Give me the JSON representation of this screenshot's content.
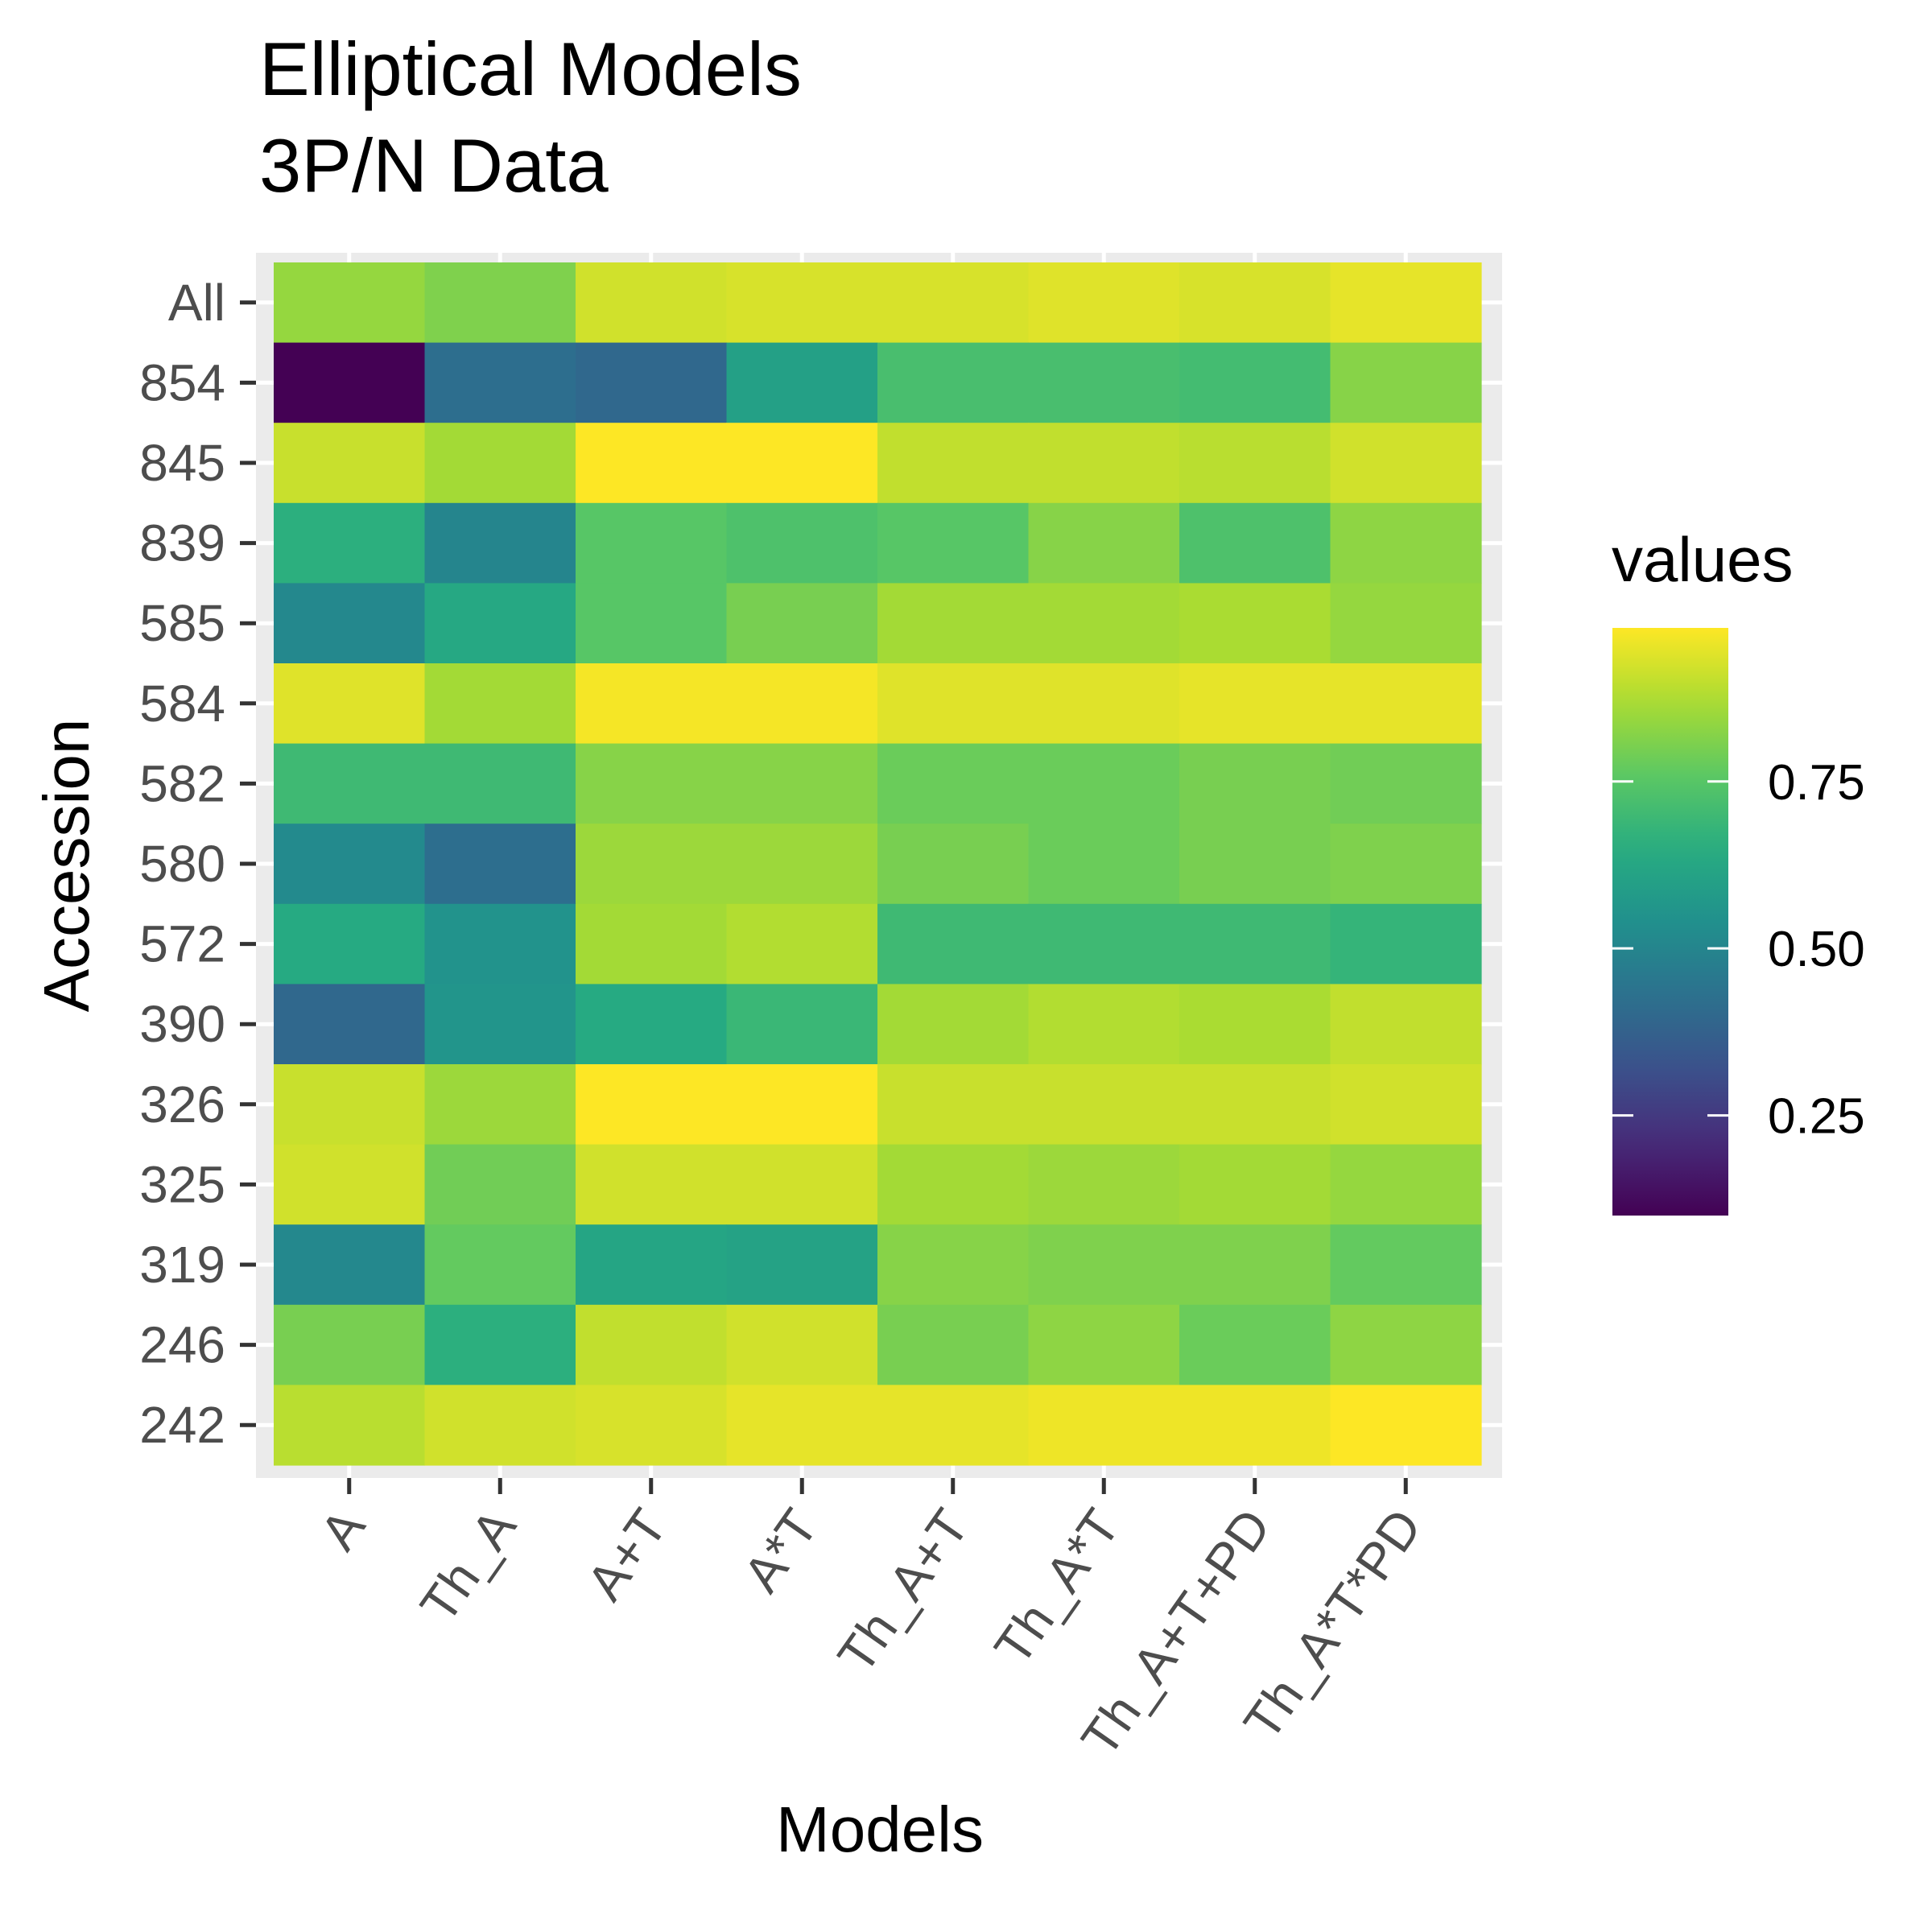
{
  "chart_data": {
    "type": "heatmap",
    "title_lines": [
      "Elliptical Models",
      "3P/N Data"
    ],
    "xlabel": "Models",
    "ylabel": "Accession",
    "x_categories": [
      "A",
      "Th_A",
      "A+T",
      "A*T",
      "Th_A+T",
      "Th_A*T",
      "Th_A+T+PD",
      "Th_A*T*PD"
    ],
    "y_categories": [
      "All",
      "854",
      "845",
      "839",
      "585",
      "584",
      "582",
      "580",
      "572",
      "390",
      "326",
      "325",
      "319",
      "246",
      "242"
    ],
    "values": [
      [
        0.84,
        0.81,
        0.92,
        0.93,
        0.93,
        0.94,
        0.93,
        0.95
      ],
      [
        0.1,
        0.42,
        0.4,
        0.6,
        0.72,
        0.72,
        0.71,
        0.82
      ],
      [
        0.91,
        0.86,
        0.98,
        0.98,
        0.9,
        0.9,
        0.89,
        0.92
      ],
      [
        0.66,
        0.5,
        0.75,
        0.73,
        0.75,
        0.82,
        0.73,
        0.83
      ],
      [
        0.51,
        0.63,
        0.75,
        0.8,
        0.86,
        0.86,
        0.87,
        0.84
      ],
      [
        0.94,
        0.86,
        0.97,
        0.97,
        0.94,
        0.94,
        0.95,
        0.95
      ],
      [
        0.7,
        0.7,
        0.82,
        0.82,
        0.78,
        0.78,
        0.8,
        0.79
      ],
      [
        0.52,
        0.42,
        0.85,
        0.85,
        0.8,
        0.78,
        0.8,
        0.81
      ],
      [
        0.64,
        0.55,
        0.86,
        0.88,
        0.7,
        0.7,
        0.7,
        0.68
      ],
      [
        0.4,
        0.56,
        0.64,
        0.69,
        0.86,
        0.88,
        0.87,
        0.9
      ],
      [
        0.91,
        0.85,
        0.98,
        0.98,
        0.91,
        0.91,
        0.91,
        0.92
      ],
      [
        0.92,
        0.79,
        0.92,
        0.92,
        0.86,
        0.85,
        0.86,
        0.84
      ],
      [
        0.51,
        0.77,
        0.62,
        0.61,
        0.82,
        0.81,
        0.81,
        0.77
      ],
      [
        0.8,
        0.66,
        0.9,
        0.92,
        0.8,
        0.83,
        0.78,
        0.83
      ],
      [
        0.89,
        0.92,
        0.93,
        0.95,
        0.95,
        0.96,
        0.96,
        0.98
      ]
    ],
    "color_scale": "viridis",
    "value_range": [
      0.1,
      0.98
    ],
    "legend": {
      "title": "values",
      "breaks": [
        0.25,
        0.5,
        0.75
      ],
      "labels": [
        "0.25",
        "0.50",
        "0.75"
      ],
      "placement": "right"
    },
    "grid": true
  }
}
